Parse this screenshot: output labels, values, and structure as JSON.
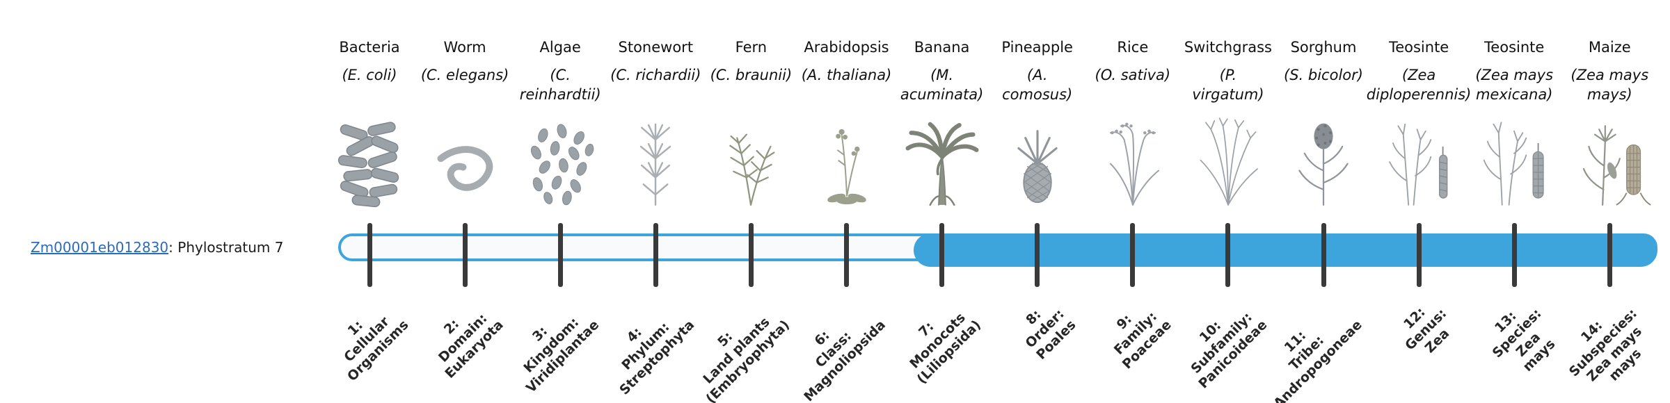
{
  "gene": {
    "id": "Zm00001eb012830",
    "label_suffix": ": Phylostratum 7",
    "phylostratum": 7
  },
  "bar": {
    "total_strata": 14,
    "filled_from_stratum": 7,
    "accent_color": "#3da4dc",
    "unfilled_color": "#f8fafc",
    "tick_color": "#3a3a3a"
  },
  "columns": [
    {
      "stratum": 1,
      "common": "Bacteria",
      "sci_lines": [
        "(E. coli)"
      ],
      "icon": "bacteria-icon",
      "label_lines": [
        "1:",
        "Cellular",
        "Organisms"
      ]
    },
    {
      "stratum": 2,
      "common": "Worm",
      "sci_lines": [
        "(C. elegans)"
      ],
      "icon": "worm-icon",
      "label_lines": [
        "2:",
        "Domain:",
        "Eukaryota"
      ]
    },
    {
      "stratum": 3,
      "common": "Algae",
      "sci_lines": [
        "(C.",
        "reinhardtii)"
      ],
      "icon": "algae-icon",
      "label_lines": [
        "3:",
        "Kingdom:",
        "Viridiplantae"
      ]
    },
    {
      "stratum": 4,
      "common": "Stonewort",
      "sci_lines": [
        "(C. richardii)"
      ],
      "icon": "stonewort-icon",
      "label_lines": [
        "4:",
        "Phylum:",
        "Streptophyta"
      ]
    },
    {
      "stratum": 5,
      "common": "Fern",
      "sci_lines": [
        "(C. braunii)"
      ],
      "icon": "fern-icon",
      "label_lines": [
        "5:",
        "Land plants",
        "(Embryophyta)"
      ]
    },
    {
      "stratum": 6,
      "common": "Arabidopsis",
      "sci_lines": [
        "(A. thaliana)"
      ],
      "icon": "arabidopsis-icon",
      "label_lines": [
        "6:",
        "Class:",
        "Magnoliopsida"
      ]
    },
    {
      "stratum": 7,
      "common": "Banana",
      "sci_lines": [
        "(M.",
        "acuminata)"
      ],
      "icon": "banana-icon",
      "label_lines": [
        "7:",
        "Monocots",
        "(Liliopsida)"
      ]
    },
    {
      "stratum": 8,
      "common": "Pineapple",
      "sci_lines": [
        "(A.",
        "comosus)"
      ],
      "icon": "pineapple-icon",
      "label_lines": [
        "8:",
        "Order:",
        "Poales"
      ]
    },
    {
      "stratum": 9,
      "common": "Rice",
      "sci_lines": [
        "(O. sativa)"
      ],
      "icon": "rice-icon",
      "label_lines": [
        "9:",
        "Family:",
        "Poaceae"
      ]
    },
    {
      "stratum": 10,
      "common": "Switchgrass",
      "sci_lines": [
        "(P.",
        "virgatum)"
      ],
      "icon": "switchgrass-icon",
      "label_lines": [
        "10:",
        "Subfamily:",
        "Panicoideae"
      ]
    },
    {
      "stratum": 11,
      "common": "Sorghum",
      "sci_lines": [
        "(S. bicolor)"
      ],
      "icon": "sorghum-icon",
      "label_lines": [
        "11:",
        "Tribe:",
        "Andropogoneae"
      ]
    },
    {
      "stratum": 12,
      "common": "Teosinte",
      "sci_lines": [
        "(Zea",
        "diploperennis)"
      ],
      "icon": "teosinte-icon",
      "label_lines": [
        "12:",
        "Genus:",
        "Zea"
      ]
    },
    {
      "stratum": 13,
      "common": "Teosinte",
      "sci_lines": [
        "(Zea mays",
        "mexicana)"
      ],
      "icon": "teosinte-mexicana-icon",
      "label_lines": [
        "13:",
        "Species:",
        "Zea",
        "mays"
      ]
    },
    {
      "stratum": 14,
      "common": "Maize",
      "sci_lines": [
        "(Zea mays",
        "mays)"
      ],
      "icon": "maize-icon",
      "label_lines": [
        "14:",
        "Subspecies:",
        "Zea mays",
        "mays"
      ]
    }
  ]
}
